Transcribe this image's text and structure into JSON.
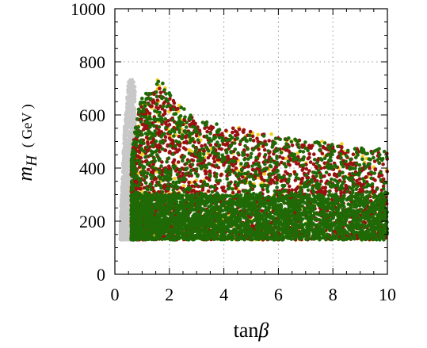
{
  "chart_data": {
    "type": "scatter",
    "title": "",
    "xlabel": "tanβ",
    "xlabel_parts": {
      "prefix": "tan",
      "symbol": "β"
    },
    "ylabel_parts": {
      "symbol": "m",
      "subscript": "H",
      "unit": "( GeV )"
    },
    "xlim": [
      0,
      10
    ],
    "ylim": [
      0,
      1000
    ],
    "xticks": [
      0,
      2,
      4,
      6,
      8,
      10
    ],
    "yticks": [
      0,
      200,
      400,
      600,
      800,
      1000
    ],
    "xtick_labels": [
      "0",
      "2",
      "4",
      "6",
      "8",
      "10"
    ],
    "ytick_labels": [
      "0",
      "200",
      "400",
      "600",
      "800",
      "1000"
    ],
    "grid": true,
    "legend": "none",
    "series": [
      {
        "color": "#c8c8c8",
        "region": {
          "x": [
            0.2,
            0.75
          ],
          "y_min": 130,
          "y_max_by_x": [
            [
              0.2,
              200
            ],
            [
              0.35,
              560
            ],
            [
              0.5,
              730
            ],
            [
              0.65,
              735
            ],
            [
              0.75,
              710
            ]
          ]
        }
      },
      {
        "color": "#f2cf1f",
        "region": {
          "x": [
            0.6,
            10
          ],
          "y_min": 130,
          "y_max_by_x": [
            [
              0.6,
              440
            ],
            [
              0.9,
              640
            ],
            [
              1.6,
              740
            ],
            [
              2.2,
              660
            ],
            [
              3.0,
              580
            ],
            [
              5.0,
              545
            ],
            [
              7.0,
              510
            ],
            [
              10.0,
              470
            ]
          ]
        }
      },
      {
        "color": "#9b1010",
        "region": {
          "x": [
            0.6,
            10
          ],
          "y_min": 130,
          "y_max_by_x": [
            [
              0.6,
              440
            ],
            [
              0.9,
              640
            ],
            [
              1.6,
              720
            ],
            [
              2.2,
              650
            ],
            [
              3.0,
              575
            ],
            [
              5.0,
              540
            ],
            [
              7.0,
              500
            ],
            [
              10.0,
              460
            ]
          ]
        }
      },
      {
        "color": "#1f6a06",
        "region": {
          "x": [
            0.6,
            10
          ],
          "y_min": 130,
          "y_max_by_x": [
            [
              0.6,
              450
            ],
            [
              0.9,
              650
            ],
            [
              1.6,
              740
            ],
            [
              2.2,
              660
            ],
            [
              3.0,
              580
            ],
            [
              5.0,
              545
            ],
            [
              7.0,
              505
            ],
            [
              10.0,
              470
            ]
          ]
        },
        "dense_below": 300
      }
    ]
  }
}
